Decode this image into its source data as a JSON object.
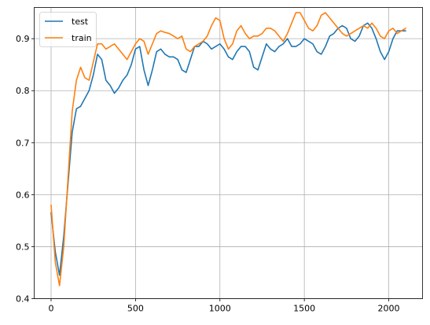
{
  "chart_data": {
    "type": "line",
    "title": "",
    "xlabel": "",
    "ylabel": "",
    "xlim": [
      -100,
      2200
    ],
    "ylim": [
      0.4,
      0.96
    ],
    "grid": true,
    "legend_placement": "upper-left",
    "x_ticks": [
      0,
      500,
      1000,
      1500,
      2000
    ],
    "x_tick_labels": [
      "0",
      "500",
      "1000",
      "1500",
      "2000"
    ],
    "y_ticks": [
      0.4,
      0.5,
      0.6,
      0.7,
      0.8,
      0.9
    ],
    "y_tick_labels": [
      "0.4",
      "0.5",
      "0.6",
      "0.7",
      "0.8",
      "0.9"
    ],
    "series": [
      {
        "name": "test",
        "color": "#1f77b4",
        "x": [
          0,
          25,
          50,
          75,
          100,
          125,
          150,
          175,
          200,
          225,
          250,
          275,
          300,
          325,
          350,
          375,
          400,
          425,
          450,
          475,
          500,
          525,
          550,
          575,
          600,
          625,
          650,
          675,
          700,
          725,
          750,
          775,
          800,
          825,
          850,
          875,
          900,
          925,
          950,
          975,
          1000,
          1025,
          1050,
          1075,
          1100,
          1125,
          1150,
          1175,
          1200,
          1225,
          1250,
          1275,
          1300,
          1325,
          1350,
          1375,
          1400,
          1425,
          1450,
          1475,
          1500,
          1525,
          1550,
          1575,
          1600,
          1625,
          1650,
          1675,
          1700,
          1725,
          1750,
          1775,
          1800,
          1825,
          1850,
          1875,
          1900,
          1925,
          1950,
          1975,
          2000,
          2025,
          2050,
          2075,
          2100
        ],
        "y": [
          0.565,
          0.49,
          0.445,
          0.52,
          0.62,
          0.72,
          0.765,
          0.77,
          0.785,
          0.8,
          0.83,
          0.87,
          0.86,
          0.82,
          0.81,
          0.795,
          0.805,
          0.82,
          0.83,
          0.85,
          0.88,
          0.885,
          0.84,
          0.81,
          0.84,
          0.875,
          0.88,
          0.87,
          0.865,
          0.865,
          0.86,
          0.84,
          0.835,
          0.86,
          0.885,
          0.885,
          0.895,
          0.89,
          0.88,
          0.885,
          0.89,
          0.88,
          0.865,
          0.86,
          0.875,
          0.885,
          0.885,
          0.875,
          0.845,
          0.84,
          0.865,
          0.89,
          0.88,
          0.875,
          0.885,
          0.89,
          0.9,
          0.885,
          0.885,
          0.89,
          0.9,
          0.895,
          0.89,
          0.875,
          0.87,
          0.885,
          0.905,
          0.91,
          0.92,
          0.925,
          0.92,
          0.9,
          0.895,
          0.905,
          0.925,
          0.93,
          0.92,
          0.9,
          0.875,
          0.86,
          0.875,
          0.9,
          0.915,
          0.915,
          0.915
        ]
      },
      {
        "name": "train",
        "color": "#ff7f0e",
        "x": [
          0,
          25,
          50,
          75,
          100,
          125,
          150,
          175,
          200,
          225,
          250,
          275,
          300,
          325,
          350,
          375,
          400,
          425,
          450,
          475,
          500,
          525,
          550,
          575,
          600,
          625,
          650,
          675,
          700,
          725,
          750,
          775,
          800,
          825,
          850,
          875,
          900,
          925,
          950,
          975,
          1000,
          1025,
          1050,
          1075,
          1100,
          1125,
          1150,
          1175,
          1200,
          1225,
          1250,
          1275,
          1300,
          1325,
          1350,
          1375,
          1400,
          1425,
          1450,
          1475,
          1500,
          1525,
          1550,
          1575,
          1600,
          1625,
          1650,
          1675,
          1700,
          1725,
          1750,
          1775,
          1800,
          1825,
          1850,
          1875,
          1900,
          1925,
          1950,
          1975,
          2000,
          2025,
          2050,
          2075,
          2100
        ],
        "y": [
          0.58,
          0.47,
          0.425,
          0.5,
          0.63,
          0.76,
          0.82,
          0.845,
          0.825,
          0.82,
          0.855,
          0.89,
          0.89,
          0.88,
          0.885,
          0.89,
          0.88,
          0.87,
          0.86,
          0.875,
          0.89,
          0.9,
          0.895,
          0.87,
          0.89,
          0.91,
          0.915,
          0.912,
          0.91,
          0.905,
          0.9,
          0.905,
          0.88,
          0.875,
          0.885,
          0.89,
          0.895,
          0.905,
          0.925,
          0.94,
          0.935,
          0.9,
          0.88,
          0.89,
          0.915,
          0.925,
          0.91,
          0.9,
          0.905,
          0.905,
          0.91,
          0.92,
          0.92,
          0.915,
          0.905,
          0.895,
          0.91,
          0.93,
          0.95,
          0.95,
          0.935,
          0.92,
          0.915,
          0.925,
          0.945,
          0.95,
          0.94,
          0.93,
          0.92,
          0.91,
          0.905,
          0.91,
          0.915,
          0.92,
          0.925,
          0.92,
          0.93,
          0.92,
          0.905,
          0.9,
          0.915,
          0.92,
          0.91,
          0.915,
          0.92
        ]
      }
    ]
  }
}
